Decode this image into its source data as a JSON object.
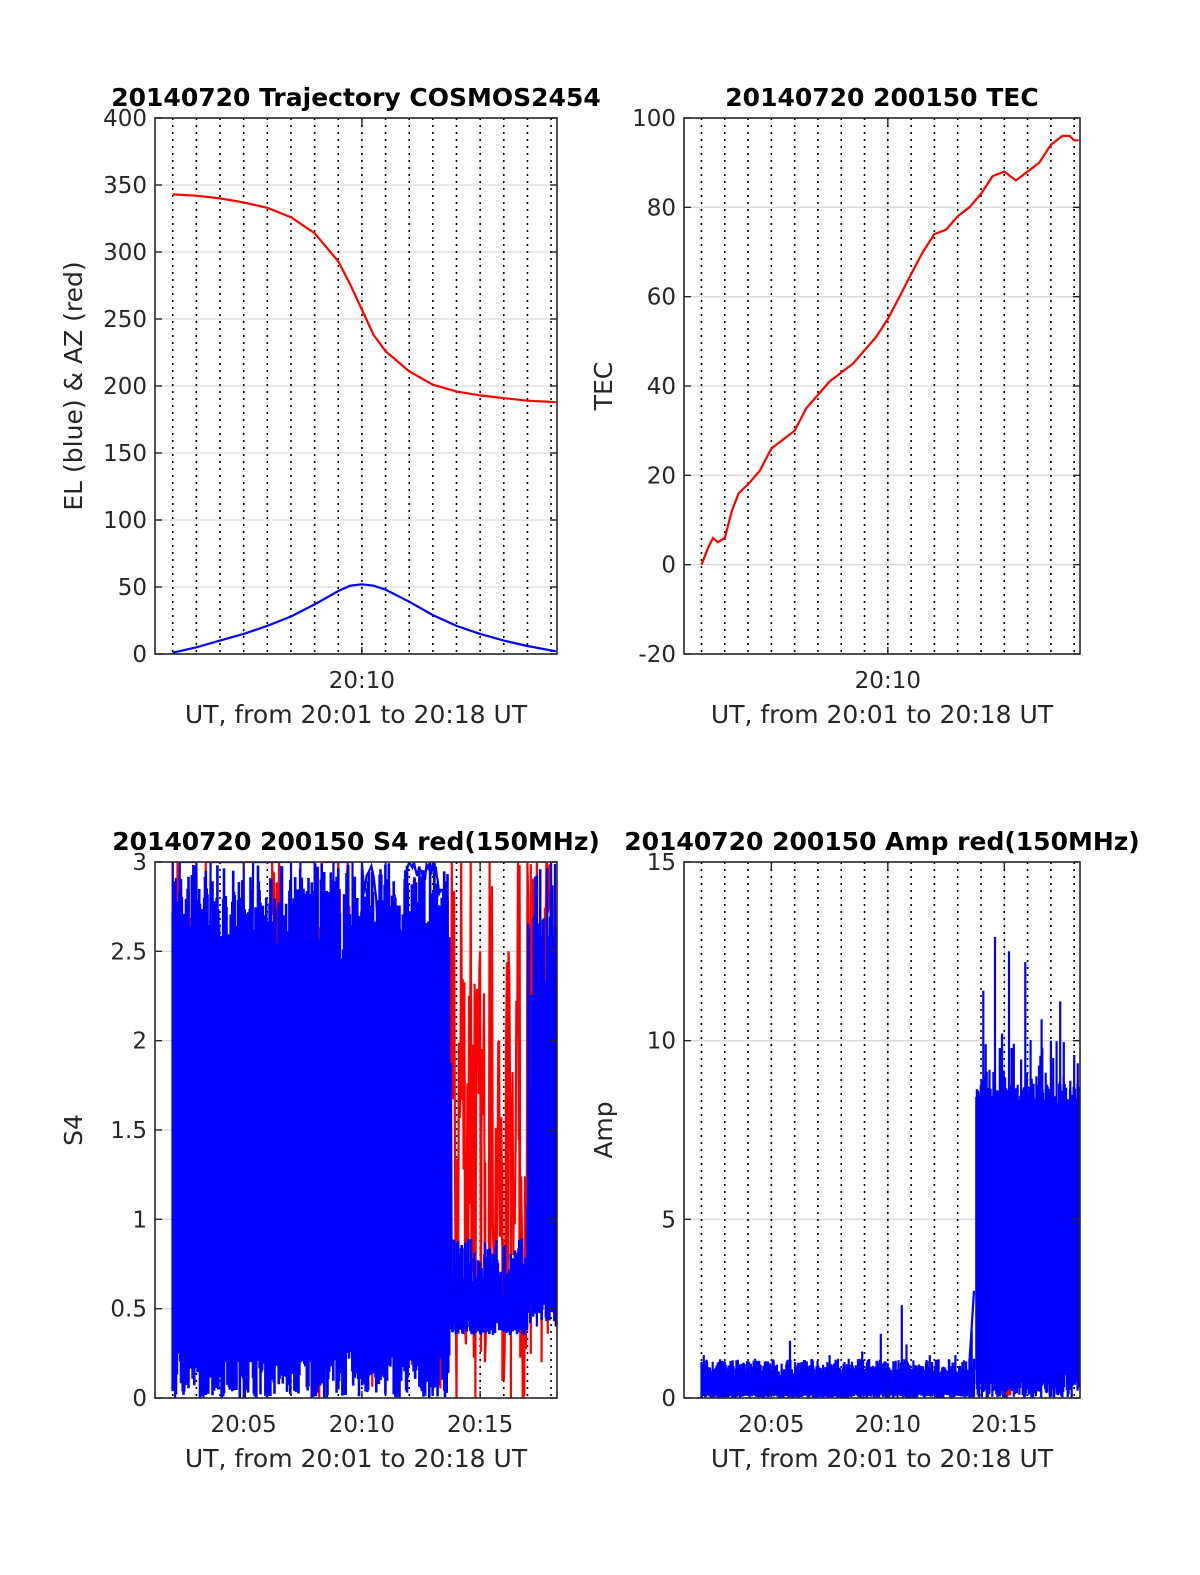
{
  "colors": {
    "el": "#0000ff",
    "az": "#ff0000",
    "tec": "#ff0000",
    "red": "#ff0000",
    "blue": "#0000ff",
    "grid": "#d9d9d9",
    "dotted": "#000000"
  },
  "chart_data": [
    {
      "id": "trajectory",
      "type": "line",
      "title": "20140720 Trajectory COSMOS2454",
      "xlabel": "UT, from 20:01 to 20:18 UT",
      "ylabel": "EL (blue) & AZ (red)",
      "xlim": [
        1.25,
        18.25
      ],
      "ylim": [
        0,
        400
      ],
      "yticks": [
        0,
        50,
        100,
        150,
        200,
        250,
        300,
        350,
        400
      ],
      "xticks": [
        10
      ],
      "xticklabels": [
        "20:10"
      ],
      "dotted_minutes": [
        2,
        3,
        4,
        5,
        6,
        7,
        8,
        9,
        10,
        11,
        12,
        13,
        14,
        15,
        16,
        17,
        18
      ],
      "series": [
        {
          "color": "az",
          "x": [
            2.0,
            3,
            4,
            5,
            6,
            7,
            8,
            9,
            9.5,
            10,
            10.5,
            11,
            12,
            13,
            14,
            15,
            16,
            17,
            18.2
          ],
          "y": [
            343,
            342,
            340,
            337,
            333,
            326,
            314,
            293,
            276,
            257,
            238,
            226,
            211,
            201,
            196,
            193,
            191,
            189,
            188
          ]
        },
        {
          "color": "el",
          "x": [
            2.0,
            3,
            4,
            5,
            6,
            7,
            8,
            9,
            9.5,
            10,
            10.5,
            11,
            12,
            13,
            14,
            15,
            16,
            17,
            18.2
          ],
          "y": [
            1,
            5,
            10,
            15,
            21,
            28,
            37,
            47,
            51,
            52,
            51,
            48,
            39,
            29,
            21,
            15,
            10,
            6,
            2
          ]
        }
      ]
    },
    {
      "id": "tec",
      "type": "line",
      "title": "20140720 200150 TEC",
      "xlabel": "UT, from 20:01 to 20:18 UT",
      "ylabel": "TEC",
      "xlim": [
        1.25,
        18.25
      ],
      "ylim": [
        -20,
        100
      ],
      "yticks": [
        -20,
        0,
        20,
        40,
        60,
        80,
        100
      ],
      "xticks": [
        10
      ],
      "xticklabels": [
        "20:10"
      ],
      "dotted_minutes": [
        2,
        3,
        4,
        5,
        6,
        7,
        8,
        9,
        10,
        11,
        12,
        13,
        14,
        15,
        16,
        17,
        18
      ],
      "series": [
        {
          "color": "tec",
          "x": [
            2.0,
            2.3,
            2.5,
            2.7,
            3.0,
            3.3,
            3.6,
            4.0,
            4.5,
            5.0,
            5.5,
            6.0,
            6.5,
            7.0,
            7.5,
            8.0,
            8.5,
            9.0,
            9.5,
            10.0,
            10.5,
            11.0,
            11.5,
            12.0,
            12.5,
            13.0,
            13.5,
            14.0,
            14.5,
            15.0,
            15.5,
            16.0,
            16.5,
            17.0,
            17.5,
            17.8,
            18.0,
            18.2
          ],
          "y": [
            0,
            4,
            6,
            5,
            6,
            12,
            16,
            18,
            21,
            26,
            28,
            30,
            35,
            38,
            41,
            43,
            45,
            48,
            51,
            55,
            60,
            65,
            70,
            74,
            75,
            78,
            80,
            83,
            87,
            88,
            86,
            88,
            90,
            94,
            96,
            96,
            95,
            95
          ]
        }
      ]
    },
    {
      "id": "s4",
      "type": "line",
      "title": "20140720 200150 S4 red(150MHz)",
      "xlabel": "UT, from 20:01 to 20:18 UT",
      "ylabel": "S4",
      "xlim": [
        1.25,
        18.25
      ],
      "ylim": [
        0,
        3
      ],
      "yticks": [
        0,
        0.5,
        1,
        1.5,
        2,
        2.5,
        3
      ],
      "yticklabels": [
        "0",
        "0.5",
        "1",
        "1.5",
        "2",
        "2.5",
        "3"
      ],
      "xticks": [
        5,
        10,
        15
      ],
      "xticklabels": [
        "20:05",
        "20:10",
        "20:15"
      ],
      "dotted_minutes": [
        2,
        3,
        4,
        5,
        6,
        7,
        8,
        9,
        10,
        11,
        12,
        13,
        14,
        15,
        16,
        17,
        18
      ],
      "series": [
        {
          "color": "red",
          "segments": [
            [
              2.0,
              3
            ],
            [
              2.1,
              1.6
            ],
            [
              2.2,
              3
            ],
            [
              3.3,
              1.3
            ],
            [
              3.4,
              3
            ],
            [
              6.2,
              3
            ],
            [
              6.3,
              2.3
            ],
            [
              6.5,
              3
            ],
            [
              8.2,
              0
            ],
            [
              8.3,
              3
            ],
            [
              9.0,
              3
            ],
            [
              9.1,
              1.0
            ],
            [
              9.2,
              2.2
            ],
            [
              9.4,
              3
            ],
            [
              9.6,
              1.2
            ],
            [
              9.8,
              2.4
            ],
            [
              10.0,
              1.1
            ],
            [
              10.2,
              2.5
            ],
            [
              10.4,
              1.0
            ],
            [
              10.6,
              2.3
            ],
            [
              10.8,
              1.3
            ],
            [
              11.0,
              2.6
            ],
            [
              11.2,
              1.5
            ],
            [
              11.4,
              2.8
            ],
            [
              11.6,
              1.3
            ],
            [
              11.8,
              2.4
            ],
            [
              12.0,
              1.6
            ],
            [
              12.2,
              2.9
            ],
            [
              12.4,
              1.3
            ],
            [
              12.6,
              2.0
            ],
            [
              12.8,
              1.3
            ],
            [
              13.0,
              2.2
            ],
            [
              13.2,
              1.6
            ],
            [
              13.4,
              2.5
            ],
            [
              13.6,
              0.5
            ],
            [
              13.8,
              3
            ],
            [
              14.0,
              0
            ],
            [
              14.2,
              3
            ],
            [
              14.4,
              0.3
            ],
            [
              14.6,
              3
            ],
            [
              14.8,
              0
            ],
            [
              15.0,
              2.5
            ],
            [
              15.2,
              0.2
            ],
            [
              15.4,
              3
            ],
            [
              15.6,
              0.5
            ],
            [
              15.8,
              2.0
            ],
            [
              16.0,
              0.1
            ],
            [
              16.2,
              2.5
            ],
            [
              16.4,
              0.8
            ],
            [
              16.6,
              3
            ],
            [
              16.8,
              0
            ],
            [
              17.0,
              3
            ],
            [
              17.2,
              0.5
            ],
            [
              17.4,
              3
            ],
            [
              17.6,
              0.2
            ],
            [
              17.8,
              3
            ],
            [
              18.0,
              2.5
            ],
            [
              18.2,
              2.6
            ]
          ]
        },
        {
          "color": "blue",
          "segments": [
            [
              2.0,
              3
            ],
            [
              2.1,
              0
            ],
            [
              2.3,
              3
            ],
            [
              3.0,
              3
            ],
            [
              3.3,
              0
            ],
            [
              3.6,
              3
            ],
            [
              5.0,
              3
            ],
            [
              5.2,
              0.1
            ],
            [
              5.4,
              3
            ],
            [
              7.0,
              3
            ],
            [
              7.2,
              0.2
            ],
            [
              7.4,
              3
            ],
            [
              8.0,
              3
            ],
            [
              8.4,
              0
            ],
            [
              8.8,
              3
            ],
            [
              9.6,
              3
            ],
            [
              9.8,
              0.3
            ],
            [
              10.0,
              3
            ],
            [
              10.6,
              2.8
            ],
            [
              10.8,
              0.1
            ],
            [
              11.0,
              2.7
            ],
            [
              11.4,
              1.5
            ],
            [
              11.6,
              0
            ],
            [
              11.8,
              2.9
            ],
            [
              12.2,
              3
            ],
            [
              12.6,
              2.9
            ],
            [
              13.0,
              3
            ],
            [
              13.2,
              2.9
            ],
            [
              13.6,
              2.8
            ],
            [
              13.8,
              0.4
            ],
            [
              14.0,
              0.6
            ],
            [
              14.3,
              0.5
            ],
            [
              14.6,
              0.4
            ],
            [
              15.0,
              0.6
            ],
            [
              15.3,
              0.4
            ],
            [
              15.6,
              0.5
            ],
            [
              16.0,
              0.4
            ],
            [
              16.4,
              0.5
            ],
            [
              16.8,
              0.4
            ],
            [
              17.0,
              0.8
            ],
            [
              17.2,
              1.5
            ],
            [
              17.4,
              0.4
            ],
            [
              17.6,
              2.4
            ],
            [
              17.8,
              0.6
            ],
            [
              18.0,
              3
            ],
            [
              18.2,
              0.4
            ]
          ]
        }
      ]
    },
    {
      "id": "amp",
      "type": "line",
      "title": "20140720 200150 Amp red(150MHz)",
      "xlabel": "UT, from 20:01 to 20:18 UT",
      "ylabel": "Amp",
      "xlim": [
        1.25,
        18.25
      ],
      "ylim": [
        0,
        15
      ],
      "yticks": [
        0,
        5,
        10,
        15
      ],
      "xticks": [
        5,
        10,
        15
      ],
      "xticklabels": [
        "20:05",
        "20:10",
        "20:15"
      ],
      "dotted_minutes": [
        2,
        3,
        4,
        5,
        6,
        7,
        8,
        9,
        10,
        11,
        12,
        13,
        14,
        15,
        16,
        17,
        18
      ],
      "series": [
        {
          "color": "blue",
          "noise_low": {
            "x": [
              2.0,
              13.7
            ],
            "base": 0.4,
            "amp": 0.7
          },
          "spikes_low": [
            [
              2.1,
              1.2
            ],
            [
              3.0,
              1.0
            ],
            [
              4.3,
              1.1
            ],
            [
              5.8,
              1.6
            ],
            [
              7.5,
              1.2
            ],
            [
              8.9,
              1.3
            ],
            [
              9.7,
              1.8
            ],
            [
              10.8,
              1.5
            ],
            [
              10.6,
              2.6
            ],
            [
              11.8,
              1.2
            ],
            [
              12.9,
              1.2
            ],
            [
              13.6,
              1.9
            ]
          ],
          "noise_high": {
            "x": [
              13.8,
              18.2
            ],
            "base": 1.5,
            "amp": 7.0
          },
          "spikes_high": [
            [
              14.1,
              11.4
            ],
            [
              14.2,
              9.9
            ],
            [
              14.6,
              12.9
            ],
            [
              14.9,
              10.2
            ],
            [
              15.2,
              12.5
            ],
            [
              15.9,
              12.2
            ],
            [
              16.6,
              10.6
            ],
            [
              17.0,
              10.0
            ],
            [
              17.4,
              11.1
            ],
            [
              18.0,
              9.6
            ]
          ]
        },
        {
          "color": "red",
          "segments": [
            [
              15.1,
              0.1
            ],
            [
              15.2,
              0.2
            ],
            [
              15.3,
              0.1
            ]
          ]
        }
      ]
    }
  ]
}
